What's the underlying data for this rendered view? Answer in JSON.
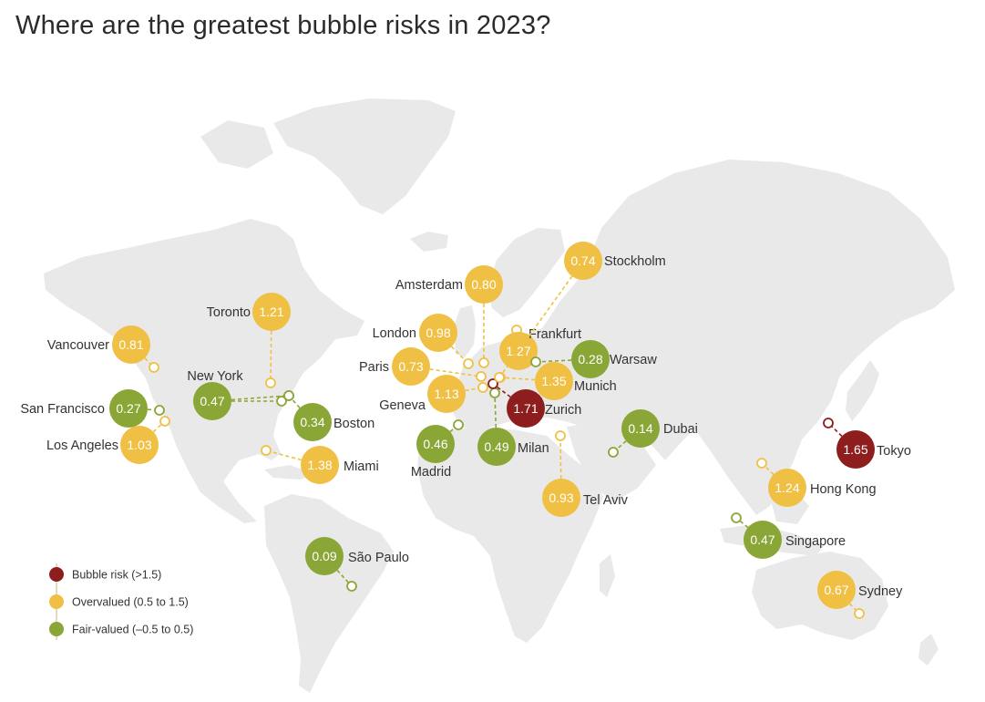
{
  "title": "Where are the greatest bubble risks in 2023?",
  "colors": {
    "bubble_risk": "#8e1d1d",
    "overvalued": "#f0c044",
    "fair_valued": "#8aa636",
    "land": "#e9e9e9"
  },
  "legend": [
    {
      "category": "bubble_risk",
      "label": "Bubble risk (>1.5)"
    },
    {
      "category": "overvalued",
      "label": "Overvalued (0.5 to 1.5)"
    },
    {
      "category": "fair_valued",
      "label": "Fair-valued (–0.5 to 0.5)"
    }
  ],
  "cities": [
    {
      "name": "Vancouver",
      "value": "0.81",
      "category": "overvalued"
    },
    {
      "name": "Toronto",
      "value": "1.21",
      "category": "overvalued"
    },
    {
      "name": "New York",
      "value": "0.47",
      "category": "fair_valued"
    },
    {
      "name": "San Francisco",
      "value": "0.27",
      "category": "fair_valued"
    },
    {
      "name": "Los Angeles",
      "value": "1.03",
      "category": "overvalued"
    },
    {
      "name": "Boston",
      "value": "0.34",
      "category": "fair_valued"
    },
    {
      "name": "Miami",
      "value": "1.38",
      "category": "overvalued"
    },
    {
      "name": "São Paulo",
      "value": "0.09",
      "category": "fair_valued"
    },
    {
      "name": "Amsterdam",
      "value": "0.80",
      "category": "overvalued"
    },
    {
      "name": "London",
      "value": "0.98",
      "category": "overvalued"
    },
    {
      "name": "Paris",
      "value": "0.73",
      "category": "overvalued"
    },
    {
      "name": "Geneva",
      "value": "1.13",
      "category": "overvalued"
    },
    {
      "name": "Madrid",
      "value": "0.46",
      "category": "fair_valued"
    },
    {
      "name": "Milan",
      "value": "0.49",
      "category": "fair_valued"
    },
    {
      "name": "Zurich",
      "value": "1.71",
      "category": "bubble_risk"
    },
    {
      "name": "Munich",
      "value": "1.35",
      "category": "overvalued"
    },
    {
      "name": "Frankfurt",
      "value": "1.27",
      "category": "overvalued"
    },
    {
      "name": "Warsaw",
      "value": "0.28",
      "category": "fair_valued"
    },
    {
      "name": "Stockholm",
      "value": "0.74",
      "category": "overvalued"
    },
    {
      "name": "Tel Aviv",
      "value": "0.93",
      "category": "overvalued"
    },
    {
      "name": "Dubai",
      "value": "0.14",
      "category": "fair_valued"
    },
    {
      "name": "Tokyo",
      "value": "1.65",
      "category": "bubble_risk"
    },
    {
      "name": "Hong Kong",
      "value": "1.24",
      "category": "overvalued"
    },
    {
      "name": "Singapore",
      "value": "0.47",
      "category": "fair_valued"
    },
    {
      "name": "Sydney",
      "value": "0.67",
      "category": "overvalued"
    }
  ]
}
